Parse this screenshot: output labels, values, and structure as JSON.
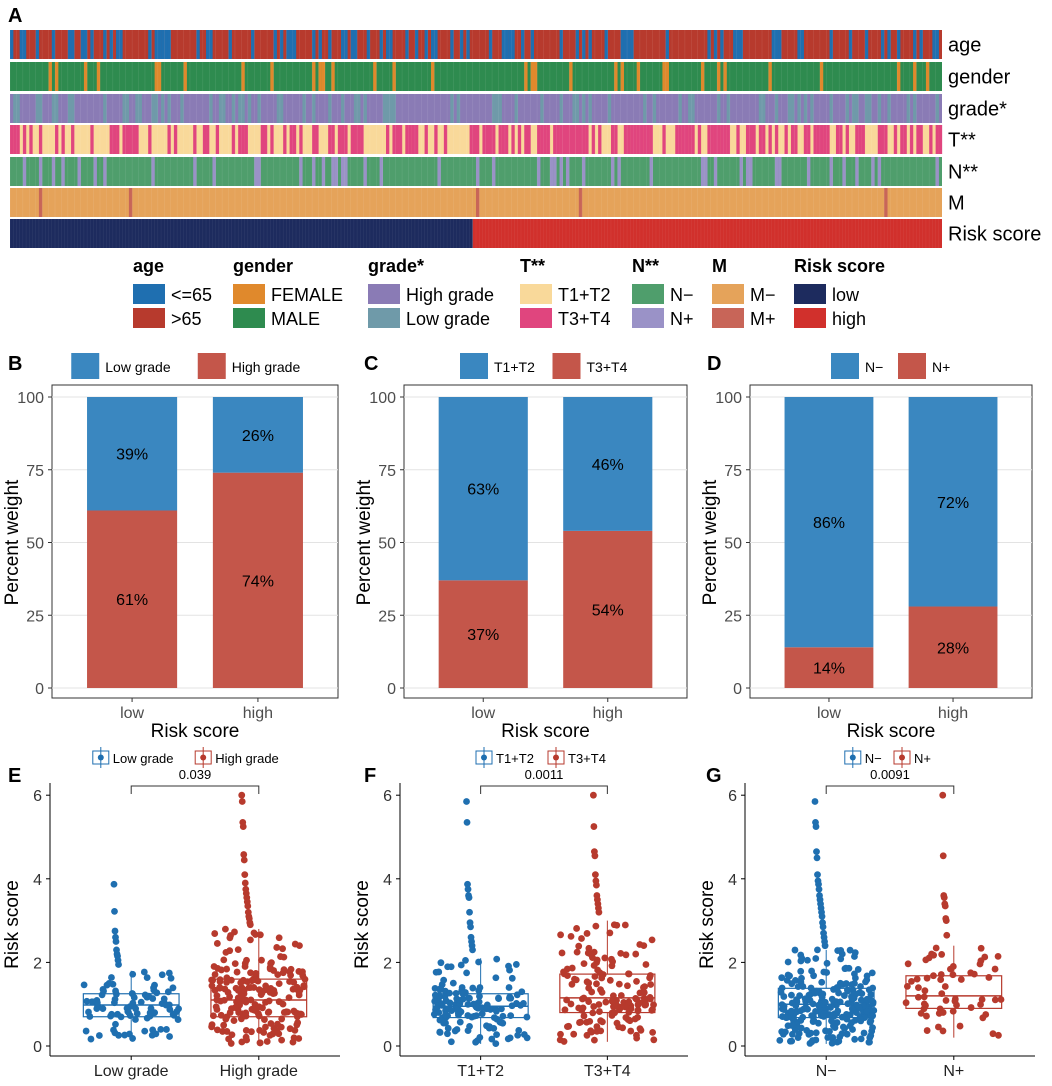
{
  "colors": {
    "blue": "#3a87c0",
    "red": "#c4564a",
    "age_le65": "#1f6fb0",
    "age_gt65": "#b73a2d",
    "female": "#e0892c",
    "male": "#2e8b4f",
    "high_grade": "#8a7bb5",
    "low_grade": "#6f9aa9",
    "t12": "#f9d99a",
    "t34": "#e0457e",
    "n_neg": "#4f9e6c",
    "n_pos": "#9a92c7",
    "m_neg": "#e5a35a",
    "m_pos": "#c86558",
    "risk_low": "#1d2b5e",
    "risk_high": "#d1302c",
    "box_blue": "#1f6fb0",
    "box_red": "#b73a2d"
  },
  "panel_a": {
    "label": "A",
    "tracks": [
      {
        "key": "age",
        "label": "age"
      },
      {
        "key": "gender",
        "label": "gender"
      },
      {
        "key": "grade",
        "label": "grade*"
      },
      {
        "key": "t",
        "label": "T**"
      },
      {
        "key": "n",
        "label": "N**"
      },
      {
        "key": "m",
        "label": "M"
      },
      {
        "key": "risk",
        "label": "Risk score"
      }
    ],
    "legend": [
      {
        "title": "age",
        "items": [
          {
            "label": "<=65",
            "color": "#1f6fb0"
          },
          {
            "label": ">65",
            "color": "#b73a2d"
          }
        ]
      },
      {
        "title": "gender",
        "items": [
          {
            "label": "FEMALE",
            "color": "#e0892c"
          },
          {
            "label": "MALE",
            "color": "#2e8b4f"
          }
        ]
      },
      {
        "title": "grade*",
        "items": [
          {
            "label": "High grade",
            "color": "#8a7bb5"
          },
          {
            "label": "Low grade",
            "color": "#6f9aa9"
          }
        ]
      },
      {
        "title": "T**",
        "items": [
          {
            "label": "T1+T2",
            "color": "#f9d99a"
          },
          {
            "label": "T3+T4",
            "color": "#e0457e"
          }
        ]
      },
      {
        "title": "N**",
        "items": [
          {
            "label": "N−",
            "color": "#4f9e6c"
          },
          {
            "label": "N+",
            "color": "#9a92c7"
          }
        ]
      },
      {
        "title": "M",
        "items": [
          {
            "label": "M−",
            "color": "#e5a35a"
          },
          {
            "label": "M+",
            "color": "#c86558"
          }
        ]
      },
      {
        "title": "Risk score",
        "items": [
          {
            "label": "low",
            "color": "#1d2b5e"
          },
          {
            "label": "high",
            "color": "#d1302c"
          }
        ]
      }
    ]
  },
  "chart_data": [
    {
      "panel": "B",
      "type": "bar",
      "stacked": true,
      "legend": [
        "Low grade",
        "High grade"
      ],
      "categories": [
        "low",
        "high"
      ],
      "series": [
        {
          "name": "High grade",
          "values": [
            61,
            74
          ],
          "labels": [
            "61%",
            "74%"
          ]
        },
        {
          "name": "Low grade",
          "values": [
            39,
            26
          ],
          "labels": [
            "39%",
            "26%"
          ]
        }
      ],
      "xlabel": "Risk score",
      "ylabel": "Percent weight",
      "ylim": [
        0,
        100
      ],
      "yticks": [
        "0",
        "25",
        "50",
        "75",
        "100"
      ]
    },
    {
      "panel": "C",
      "type": "bar",
      "stacked": true,
      "legend": [
        "T1+T2",
        "T3+T4"
      ],
      "categories": [
        "low",
        "high"
      ],
      "series": [
        {
          "name": "T3+T4",
          "values": [
            37,
            54
          ],
          "labels": [
            "37%",
            "54%"
          ]
        },
        {
          "name": "T1+T2",
          "values": [
            63,
            46
          ],
          "labels": [
            "63%",
            "46%"
          ]
        }
      ],
      "xlabel": "Risk score",
      "ylabel": "Percent weight",
      "ylim": [
        0,
        100
      ],
      "yticks": [
        "0",
        "25",
        "50",
        "75",
        "100"
      ]
    },
    {
      "panel": "D",
      "type": "bar",
      "stacked": true,
      "legend": [
        "N−",
        "N+"
      ],
      "categories": [
        "low",
        "high"
      ],
      "series": [
        {
          "name": "N+",
          "values": [
            14,
            28
          ],
          "labels": [
            "14%",
            "28%"
          ]
        },
        {
          "name": "N−",
          "values": [
            86,
            72
          ],
          "labels": [
            "86%",
            "72%"
          ]
        }
      ],
      "xlabel": "Risk score",
      "ylabel": "Percent weight",
      "ylim": [
        0,
        100
      ],
      "yticks": [
        "0",
        "25",
        "50",
        "75",
        "100"
      ]
    },
    {
      "panel": "E",
      "type": "boxplot",
      "legend": [
        "Low grade",
        "High grade"
      ],
      "categories": [
        "Low grade",
        "High grade"
      ],
      "groups": [
        {
          "name": "Low grade",
          "min": 0.15,
          "q1": 0.7,
          "median": 0.98,
          "q3": 1.25,
          "max": 1.8,
          "n": 90,
          "outliers": [
            3.87,
            3.22,
            2.75,
            2.6,
            2.5,
            2.3,
            2.2,
            2.15,
            2.05,
            1.95
          ]
        },
        {
          "name": "High grade",
          "min": 0.05,
          "q1": 0.7,
          "median": 1.1,
          "q3": 1.6,
          "max": 2.8,
          "n": 200,
          "outliers": [
            6.0,
            5.85,
            5.35,
            5.25,
            4.58,
            4.45,
            4.1,
            3.9,
            3.75,
            3.65,
            3.55,
            3.45,
            3.35,
            3.2,
            3.1,
            3.05,
            2.95,
            2.9
          ]
        }
      ],
      "pvalue": "0.039",
      "ylabel": "Risk score",
      "ylim": [
        0,
        6.2
      ],
      "yticks": [
        "0",
        "2",
        "4",
        "6"
      ]
    },
    {
      "panel": "F",
      "type": "boxplot",
      "legend": [
        "T1+T2",
        "T3+T4"
      ],
      "categories": [
        "T1+T2",
        "T3+T4"
      ],
      "groups": [
        {
          "name": "T1+T2",
          "min": 0.05,
          "q1": 0.68,
          "median": 0.95,
          "q3": 1.25,
          "max": 2.1,
          "n": 140,
          "outliers": [
            5.85,
            5.35,
            3.87,
            3.75,
            3.6,
            3.55,
            3.2,
            2.95,
            2.85,
            2.6,
            2.5,
            2.4,
            2.3
          ]
        },
        {
          "name": "T3+T4",
          "min": 0.1,
          "q1": 0.8,
          "median": 1.15,
          "q3": 1.72,
          "max": 3.0,
          "n": 150,
          "outliers": [
            6.0,
            5.25,
            4.65,
            4.55,
            4.1,
            3.95,
            3.85,
            3.6,
            3.5,
            3.4,
            3.3,
            3.2
          ]
        }
      ],
      "pvalue": "0.0011",
      "ylabel": "Risk score",
      "ylim": [
        0,
        6.2
      ],
      "yticks": [
        "0",
        "2",
        "4",
        "6"
      ]
    },
    {
      "panel": "G",
      "type": "boxplot",
      "legend": [
        "N−",
        "N+"
      ],
      "categories": [
        "N−",
        "N+"
      ],
      "groups": [
        {
          "name": "N−",
          "min": 0.05,
          "q1": 0.68,
          "median": 1.0,
          "q3": 1.38,
          "max": 2.3,
          "n": 240,
          "outliers": [
            5.85,
            5.35,
            5.25,
            4.65,
            4.5,
            4.1,
            3.95,
            3.87,
            3.75,
            3.6,
            3.5,
            3.4,
            3.3,
            3.2,
            3.1,
            2.95,
            2.85,
            2.7,
            2.6,
            2.5,
            2.4
          ]
        },
        {
          "name": "N+",
          "min": 0.2,
          "q1": 0.9,
          "median": 1.2,
          "q3": 1.68,
          "max": 2.4,
          "n": 60,
          "outliers": [
            6.0,
            4.55,
            3.6,
            3.55,
            3.4,
            3.35,
            3.05,
            3.0,
            2.65
          ]
        }
      ],
      "pvalue": "0.0091",
      "ylabel": "Risk score",
      "ylim": [
        0,
        6.2
      ],
      "yticks": [
        "0",
        "2",
        "4",
        "6"
      ]
    }
  ]
}
